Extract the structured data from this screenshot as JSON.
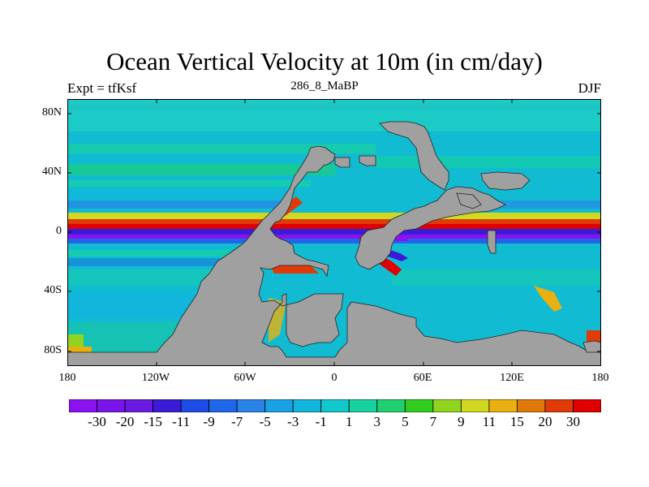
{
  "title": "Ocean Vertical Velocity at 10m (in cm/day)",
  "left_string": "Expt = tfKsf",
  "center_string": "286_8_MaBP",
  "right_string": "DJF",
  "map": {
    "projection": "cylindrical-equidistant",
    "lon_range": [
      -180,
      180
    ],
    "lat_range": [
      -90,
      90
    ],
    "x_ticks": [
      "180",
      "120W",
      "60W",
      "0",
      "60E",
      "120E",
      "180"
    ],
    "y_ticks": [
      "80N",
      "40N",
      "0",
      "40S",
      "80S"
    ],
    "land_color": "#a0a0a0",
    "ocean_background": "#11bcd2"
  },
  "colorbar": {
    "labels": [
      "-30",
      "-20",
      "-15",
      "-11",
      "-9",
      "-7",
      "-5",
      "-3",
      "-1",
      "1",
      "3",
      "5",
      "7",
      "9",
      "11",
      "15",
      "20",
      "30"
    ],
    "colors": [
      "#8a12f0",
      "#7a14e8",
      "#6a1ae0",
      "#3a1cd8",
      "#1e4ae6",
      "#2066e8",
      "#2a84e8",
      "#1aa0e4",
      "#12b6dc",
      "#12c8cc",
      "#18d2a0",
      "#20d070",
      "#30cc20",
      "#90d420",
      "#d0d820",
      "#e8b010",
      "#e07808",
      "#e03a08",
      "#e00000"
    ]
  }
}
